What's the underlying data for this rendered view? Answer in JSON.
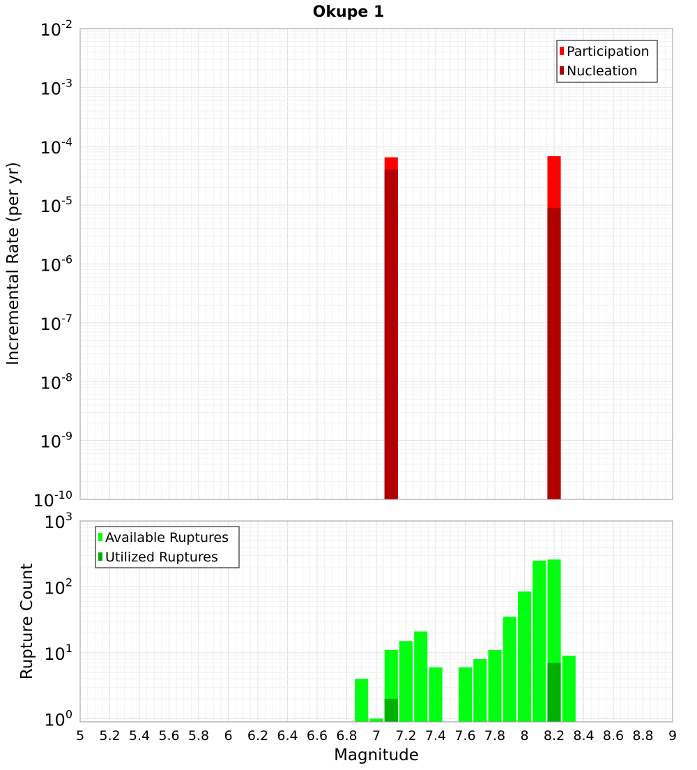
{
  "chart_data": [
    {
      "type": "bar",
      "title": "Okupe 1",
      "xlabel": "",
      "ylabel": "Incremental Rate (per yr)",
      "yscale": "log",
      "ylim_exponents": [
        -10,
        -2
      ],
      "xlim": [
        5,
        9
      ],
      "grid": true,
      "legend_position": "top-right",
      "y_tick_base": "10",
      "y_tick_exponents": [
        "-10",
        "-9",
        "-8",
        "-7",
        "-6",
        "-5",
        "-4",
        "-3",
        "-2"
      ],
      "bar_width": 0.09,
      "series": [
        {
          "name": "Participation",
          "color": "#ff0000",
          "x": [
            7.1,
            8.2
          ],
          "values": [
            6.5e-05,
            6.8e-05
          ]
        },
        {
          "name": "Nucleation",
          "color": "#b00000",
          "x": [
            7.1,
            8.2
          ],
          "values": [
            4e-05,
            9e-06
          ]
        }
      ]
    },
    {
      "type": "bar",
      "xlabel": "Magnitude",
      "ylabel": "Rupture Count",
      "yscale": "log",
      "ylim_exponents": [
        -0.05,
        3
      ],
      "xlim": [
        5,
        9
      ],
      "grid": true,
      "legend_position": "top-left",
      "y_tick_base": "10",
      "y_tick_exponents": [
        "0",
        "1",
        "2",
        "3"
      ],
      "x_ticks": [
        "5",
        "5.2",
        "5.4",
        "5.6",
        "5.8",
        "6",
        "6.2",
        "6.4",
        "6.6",
        "6.8",
        "7",
        "7.2",
        "7.4",
        "7.6",
        "7.8",
        "8",
        "8.2",
        "8.4",
        "8.6",
        "8.8",
        "9"
      ],
      "bar_width": 0.09,
      "series": [
        {
          "name": "Available Ruptures",
          "color": "#00ff10",
          "x": [
            6.9,
            7.0,
            7.1,
            7.2,
            7.3,
            7.4,
            7.6,
            7.7,
            7.8,
            7.9,
            8.0,
            8.1,
            8.2,
            8.3
          ],
          "values": [
            4,
            1,
            11,
            15,
            21,
            6,
            6,
            8,
            11,
            35,
            85,
            250,
            260,
            9
          ]
        },
        {
          "name": "Utilized Ruptures",
          "color": "#00b000",
          "x": [
            7.1,
            8.2
          ],
          "values": [
            2,
            7
          ]
        }
      ]
    }
  ]
}
